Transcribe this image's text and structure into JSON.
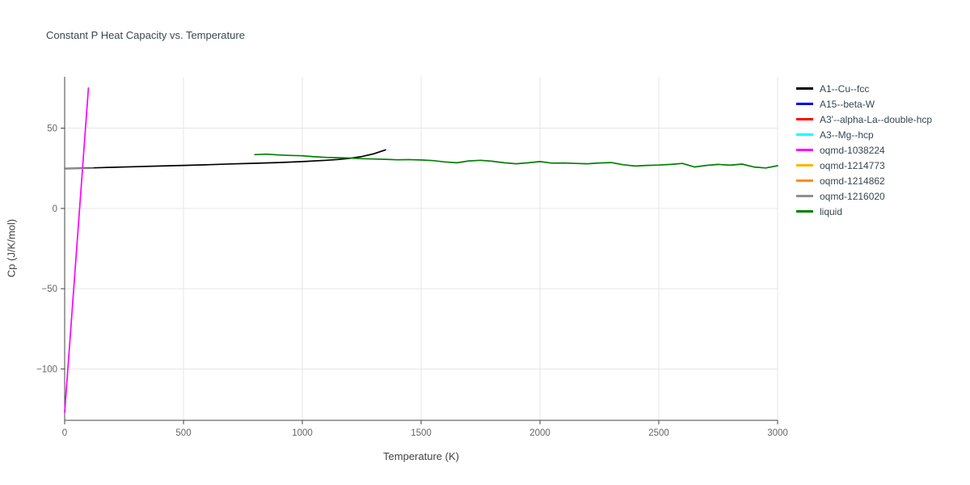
{
  "chart_data": {
    "type": "line",
    "title": "Constant P Heat Capacity vs. Temperature",
    "xlabel": "Temperature (K)",
    "ylabel": "Cp (J/K/mol)",
    "xlim": [
      0,
      3000
    ],
    "ylim": [
      -132,
      82
    ],
    "x_ticks": [
      0,
      500,
      1000,
      1500,
      2000,
      2500,
      3000
    ],
    "y_ticks": [
      -100,
      -50,
      0,
      50
    ],
    "grid": true,
    "legend_position": "top-right-outside",
    "series": [
      {
        "name": "A1--Cu--fcc",
        "color": "#000000",
        "points": [
          [
            0,
            24.8
          ],
          [
            100,
            25.2
          ],
          [
            200,
            25.6
          ],
          [
            300,
            26.0
          ],
          [
            400,
            26.4
          ],
          [
            500,
            26.8
          ],
          [
            600,
            27.2
          ],
          [
            700,
            27.7
          ],
          [
            800,
            28.1
          ],
          [
            900,
            28.6
          ],
          [
            1000,
            29.2
          ],
          [
            1100,
            30.0
          ],
          [
            1150,
            30.5
          ],
          [
            1200,
            31.2
          ],
          [
            1250,
            32.3
          ],
          [
            1300,
            34.0
          ],
          [
            1350,
            36.5
          ]
        ]
      },
      {
        "name": "A15--beta-W",
        "color": "#0000ff",
        "points": []
      },
      {
        "name": "A3'--alpha-La--double-hcp",
        "color": "#ff0000",
        "points": []
      },
      {
        "name": "A3--Mg--hcp",
        "color": "#00ffff",
        "points": []
      },
      {
        "name": "oqmd-1038224",
        "color": "#ff00ff",
        "points": [
          [
            0,
            -127
          ],
          [
            100,
            75
          ]
        ]
      },
      {
        "name": "oqmd-1214773",
        "color": "#ffb300",
        "points": []
      },
      {
        "name": "oqmd-1214862",
        "color": "#ff8f00",
        "points": []
      },
      {
        "name": "oqmd-1216020",
        "color": "#909090",
        "points": [
          [
            0,
            24.6
          ],
          [
            120,
            25.0
          ]
        ]
      },
      {
        "name": "liquid",
        "color": "#008000",
        "points": [
          [
            800,
            33.5
          ],
          [
            850,
            33.8
          ],
          [
            900,
            33.3
          ],
          [
            950,
            33.0
          ],
          [
            1000,
            32.8
          ],
          [
            1050,
            32.2
          ],
          [
            1100,
            31.8
          ],
          [
            1150,
            31.6
          ],
          [
            1200,
            31.4
          ],
          [
            1250,
            31.0
          ],
          [
            1300,
            30.8
          ],
          [
            1350,
            30.6
          ],
          [
            1400,
            30.3
          ],
          [
            1450,
            30.4
          ],
          [
            1500,
            30.2
          ],
          [
            1550,
            29.8
          ],
          [
            1600,
            29.0
          ],
          [
            1650,
            28.4
          ],
          [
            1700,
            29.6
          ],
          [
            1750,
            30.0
          ],
          [
            1800,
            29.4
          ],
          [
            1850,
            28.4
          ],
          [
            1900,
            27.8
          ],
          [
            1950,
            28.4
          ],
          [
            2000,
            29.2
          ],
          [
            2050,
            28.2
          ],
          [
            2100,
            28.3
          ],
          [
            2150,
            28.0
          ],
          [
            2200,
            27.8
          ],
          [
            2250,
            28.3
          ],
          [
            2300,
            28.6
          ],
          [
            2350,
            27.2
          ],
          [
            2400,
            26.4
          ],
          [
            2450,
            26.8
          ],
          [
            2500,
            27.0
          ],
          [
            2550,
            27.4
          ],
          [
            2600,
            28.0
          ],
          [
            2650,
            25.8
          ],
          [
            2700,
            26.8
          ],
          [
            2750,
            27.4
          ],
          [
            2800,
            26.9
          ],
          [
            2850,
            27.6
          ],
          [
            2900,
            25.8
          ],
          [
            2950,
            25.2
          ],
          [
            3000,
            26.6
          ]
        ]
      }
    ],
    "style": {
      "grid_color": "#e6e6e6",
      "axis_color": "#444444",
      "tick_label_color": "#666666",
      "title_color": "#37474f",
      "legend_label_color": "#37474f"
    }
  }
}
